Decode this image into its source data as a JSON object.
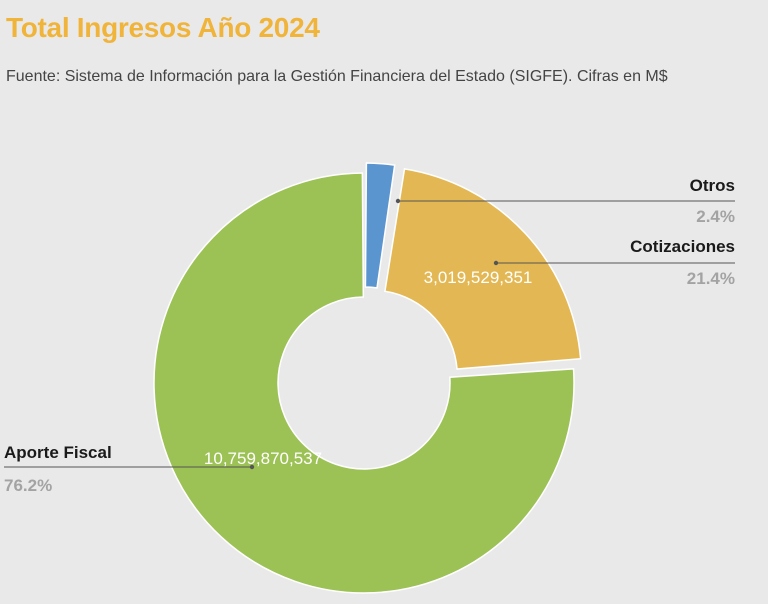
{
  "header": {
    "title": "Total Ingresos Año 2024",
    "subtitle": "Fuente: Sistema de Información para la Gestión Financiera del Estado (SIGFE). Cifras en M$"
  },
  "chart_data": {
    "type": "pie",
    "variant": "donut",
    "title": "Total Ingresos Año 2024",
    "subtitle": "Fuente: Sistema de Información para la Gestión Financiera del Estado (SIGFE). Cifras en M$",
    "slices": [
      {
        "name": "Otros",
        "percent_label": "2.4%",
        "percent": 2.4,
        "value_label": "",
        "color": "#5b95cf"
      },
      {
        "name": "Cotizaciones",
        "percent_label": "21.4%",
        "percent": 21.4,
        "value_label": "3,019,529,351",
        "value": 3019529351,
        "color": "#e3b854"
      },
      {
        "name": "Aporte Fiscal",
        "percent_label": "76.2%",
        "percent": 76.2,
        "value_label": "10,759,870,537",
        "value": 10759870537,
        "color": "#9cc155"
      }
    ]
  }
}
